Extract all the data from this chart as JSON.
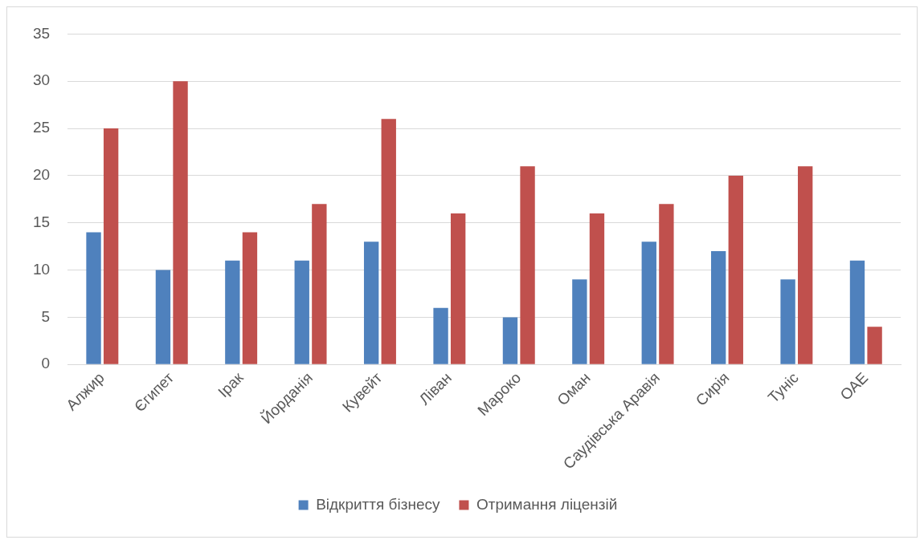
{
  "chart_data": {
    "type": "bar",
    "categories": [
      "Алжир",
      "Єгипет",
      "Ірак",
      "Йорданія",
      "Кувейт",
      "Ліван",
      "Мароко",
      "Оман",
      "Саудівська Аравія",
      "Сирія",
      "Туніс",
      "ОАЕ"
    ],
    "series": [
      {
        "name": "Відкриття бізнесу",
        "color": "#4f81bd",
        "values": [
          14,
          10,
          11,
          11,
          13,
          6,
          5,
          9,
          13,
          12,
          9,
          11
        ]
      },
      {
        "name": "Отримання ліцензій",
        "color": "#c0504d",
        "values": [
          25,
          30,
          14,
          17,
          26,
          16,
          21,
          16,
          17,
          20,
          21,
          4
        ]
      }
    ],
    "ylim": [
      0,
      35
    ],
    "yticks": [
      0,
      5,
      10,
      15,
      20,
      25,
      30,
      35
    ],
    "grid": "y",
    "legend": "bottom"
  }
}
